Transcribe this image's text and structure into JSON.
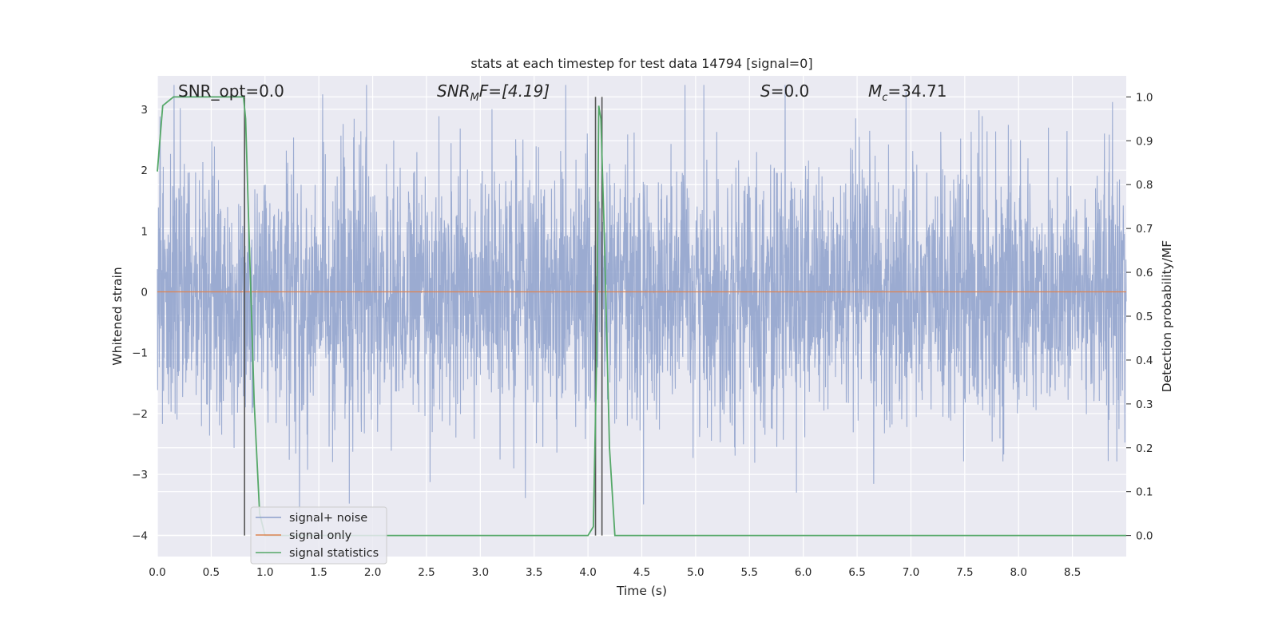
{
  "chart_data": {
    "type": "line",
    "title": "stats at each timestep for test data 14794 [signal=0]",
    "xlabel": "Time (s)",
    "ylabel": "Whitened strain",
    "y2label": "Detection probability/MF",
    "xlim": [
      0.0,
      9.0
    ],
    "ylim": [
      -4.35,
      3.55
    ],
    "y2lim": [
      -0.048,
      1.048
    ],
    "xticks": [
      "0.0",
      "0.5",
      "1.0",
      "1.5",
      "2.0",
      "2.5",
      "3.0",
      "3.5",
      "4.0",
      "4.5",
      "5.0",
      "5.5",
      "6.0",
      "6.5",
      "7.0",
      "7.5",
      "8.0",
      "8.5"
    ],
    "yticks": [
      "3",
      "2",
      "1",
      "0",
      "−1",
      "−2",
      "−3",
      "−4"
    ],
    "y2ticks": [
      "1.0",
      "0.9",
      "0.8",
      "0.7",
      "0.6",
      "0.5",
      "0.4",
      "0.3",
      "0.2",
      "0.1",
      "0.0"
    ],
    "grid": true,
    "legend_position": "lower-left",
    "annotations": {
      "snr_opt": "SNR_opt=0.0",
      "snr_mf": "SNR",
      "snr_mf_sub": "M",
      "snr_mf_rest": "F=[4.19]",
      "s": "S",
      "s_rest": "=0.0",
      "mc": "M",
      "mc_sub": "c",
      "mc_rest": "=34.71"
    },
    "series": [
      {
        "name": "signal+ noise",
        "color": "#8da0cb",
        "description_range": [
          -4.0,
          3.4
        ],
        "noise_std": 1.0
      },
      {
        "name": "signal only",
        "color": "#dd8452",
        "x": [
          0.0,
          9.0
        ],
        "y": [
          0.0,
          0.0
        ]
      },
      {
        "name": "signal statistics",
        "color": "#55a868",
        "axis": "right",
        "x": [
          0.0,
          0.05,
          0.1,
          0.15,
          0.2,
          0.3,
          0.4,
          0.5,
          0.6,
          0.7,
          0.8,
          0.82,
          0.85,
          0.9,
          0.95,
          1.0,
          1.5,
          2.0,
          2.5,
          3.0,
          3.5,
          4.0,
          4.05,
          4.08,
          4.1,
          4.12,
          4.15,
          4.2,
          4.25,
          4.5,
          5.0,
          6.0,
          7.0,
          8.0,
          8.5,
          9.0
        ],
        "y": [
          0.83,
          0.98,
          0.99,
          1.0,
          1.0,
          1.0,
          1.0,
          1.0,
          1.0,
          1.0,
          1.0,
          0.95,
          0.7,
          0.3,
          0.05,
          0.0,
          0.0,
          0.0,
          0.0,
          0.0,
          0.0,
          0.0,
          0.02,
          0.4,
          0.98,
          0.95,
          0.7,
          0.2,
          0.0,
          0.0,
          0.0,
          0.0,
          0.0,
          0.0,
          0.0,
          0.0
        ]
      }
    ],
    "vlines": {
      "color": "#555555",
      "x": [
        0.81,
        4.07,
        4.13
      ]
    }
  }
}
